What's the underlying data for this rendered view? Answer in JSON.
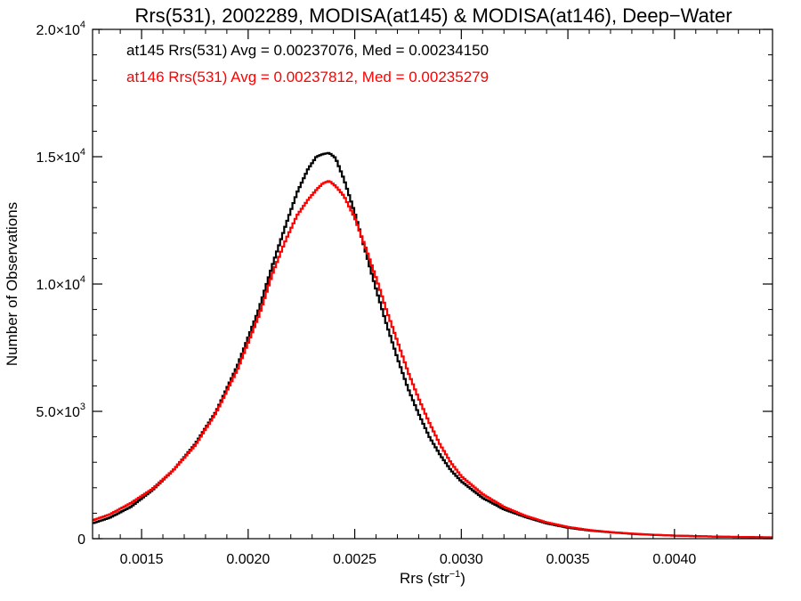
{
  "chart_data": {
    "type": "line",
    "title": "Rrs(531), 2002289, MODISA(at145) & MODISA(at146), Deep−Water",
    "xlabel": "Rrs (str",
    "xlabel_sup": "−1",
    "xlabel_end": ")",
    "ylabel": "Number of Observations",
    "xlim": [
      0.00127,
      0.00446
    ],
    "ylim": [
      0,
      20000
    ],
    "x_ticks": [
      {
        "value": 0.0015,
        "label": "0.0015"
      },
      {
        "value": 0.002,
        "label": "0.0020"
      },
      {
        "value": 0.0025,
        "label": "0.0025"
      },
      {
        "value": 0.003,
        "label": "0.0030"
      },
      {
        "value": 0.0035,
        "label": "0.0035"
      },
      {
        "value": 0.004,
        "label": "0.0040"
      }
    ],
    "y_ticks": [
      {
        "value": 0,
        "mant": "0",
        "exp": ""
      },
      {
        "value": 5000,
        "mant": "5.0×10",
        "exp": "3"
      },
      {
        "value": 10000,
        "mant": "1.0×10",
        "exp": "4"
      },
      {
        "value": 15000,
        "mant": "1.5×10",
        "exp": "4"
      },
      {
        "value": 20000,
        "mant": "2.0×10",
        "exp": "4"
      }
    ],
    "grid": false,
    "series": [
      {
        "color": "#000000",
        "annotation": "at145 Rrs(531) Avg = 0.00237076, Med = 0.00234150",
        "x": [
          0.00127,
          0.00135,
          0.00145,
          0.00155,
          0.00165,
          0.00175,
          0.00185,
          0.00195,
          0.00205,
          0.00212,
          0.00218,
          0.00223,
          0.00228,
          0.00232,
          0.00235,
          0.00238,
          0.00241,
          0.00245,
          0.0025,
          0.00255,
          0.0026,
          0.00265,
          0.0027,
          0.00275,
          0.0028,
          0.00285,
          0.0029,
          0.00295,
          0.003,
          0.0031,
          0.0032,
          0.0033,
          0.0034,
          0.0035,
          0.0036,
          0.0037,
          0.0038,
          0.0039,
          0.004,
          0.0042,
          0.00446
        ],
        "y": [
          600,
          820,
          1250,
          1900,
          2700,
          3700,
          5000,
          6800,
          9000,
          10900,
          12400,
          13600,
          14500,
          15000,
          15100,
          15150,
          14950,
          14100,
          12800,
          11300,
          9800,
          8400,
          7100,
          5900,
          4900,
          4000,
          3300,
          2700,
          2250,
          1600,
          1150,
          850,
          600,
          430,
          320,
          250,
          190,
          150,
          120,
          80,
          50
        ]
      },
      {
        "color": "#ff0000",
        "annotation": "at146 Rrs(531) Avg = 0.00237812, Med = 0.00235279",
        "x": [
          0.00127,
          0.00135,
          0.00145,
          0.00155,
          0.00165,
          0.00175,
          0.00185,
          0.00195,
          0.00205,
          0.00212,
          0.00218,
          0.00223,
          0.00228,
          0.00232,
          0.00235,
          0.00238,
          0.00241,
          0.00245,
          0.0025,
          0.00255,
          0.0026,
          0.00265,
          0.0027,
          0.00275,
          0.0028,
          0.00285,
          0.0029,
          0.00295,
          0.003,
          0.0031,
          0.0032,
          0.0033,
          0.0034,
          0.0035,
          0.0036,
          0.0037,
          0.0038,
          0.0039,
          0.004,
          0.0042,
          0.00446
        ],
        "y": [
          720,
          950,
          1400,
          1950,
          2700,
          3650,
          4950,
          6650,
          8750,
          10550,
          11800,
          12700,
          13300,
          13700,
          13950,
          14050,
          13850,
          13450,
          12600,
          11450,
          10250,
          8950,
          7750,
          6550,
          5500,
          4550,
          3700,
          3000,
          2450,
          1750,
          1250,
          900,
          640,
          460,
          340,
          260,
          200,
          155,
          120,
          80,
          50
        ]
      }
    ]
  }
}
